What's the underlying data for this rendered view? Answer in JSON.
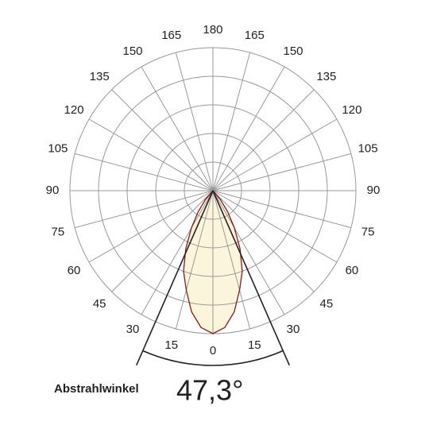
{
  "chart_data": {
    "type": "polar",
    "rlim": [
      0,
      1
    ],
    "rticks": [
      0.2,
      0.4,
      0.6,
      0.8,
      1
    ],
    "thetaticks": [
      0,
      {
        "value": 15,
        "label": "15"
      },
      {
        "value": 30,
        "label": "30"
      },
      {
        "value": 45,
        "label": "45"
      },
      {
        "value": 60,
        "label": "60"
      },
      {
        "value": 75,
        "label": "75"
      },
      {
        "value": 90,
        "label": "90"
      },
      {
        "value": 105,
        "label": "105"
      },
      {
        "value": 120,
        "label": "120"
      },
      {
        "value": 135,
        "label": "135"
      },
      {
        "value": 150,
        "label": "150"
      },
      {
        "value": 165,
        "label": "165"
      },
      180,
      {
        "value": -15,
        "label": "15"
      },
      {
        "value": -30,
        "label": "30"
      },
      {
        "value": -45,
        "label": "45"
      },
      {
        "value": -60,
        "label": "60"
      },
      {
        "value": -75,
        "label": "75"
      },
      {
        "value": -90,
        "label": "90"
      },
      {
        "value": -105,
        "label": "105"
      },
      {
        "value": -120,
        "label": "120"
      },
      {
        "value": -135,
        "label": "135"
      },
      {
        "value": -150,
        "label": "150"
      },
      {
        "value": -165,
        "label": "165"
      }
    ],
    "series": [
      {
        "color": "#8b1a1a",
        "fill": "#fbf5dc",
        "theta": [
          -45,
          -40,
          -35,
          -30,
          -25,
          -20,
          -15,
          -10,
          -5,
          0,
          5,
          10,
          15,
          20,
          25,
          30,
          35,
          40,
          45
        ],
        "values": [
          0,
          0.08,
          0.18,
          0.3,
          0.45,
          0.6,
          0.72,
          0.86,
          0.96,
          1.0,
          0.96,
          0.86,
          0.72,
          0.6,
          0.45,
          0.3,
          0.18,
          0.08,
          0
        ]
      }
    ],
    "annotation": "Abstrahlwinkel",
    "beam_angle": {
      "value": 47.3,
      "label": "47,3°"
    }
  }
}
